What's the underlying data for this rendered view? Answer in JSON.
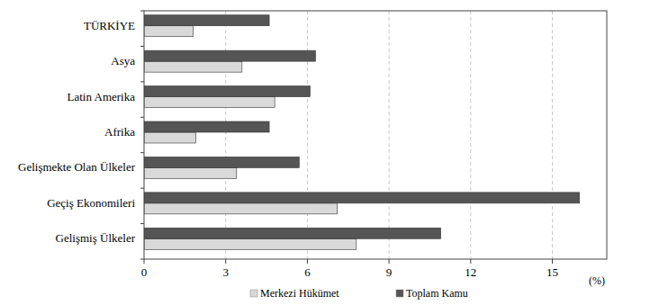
{
  "chart_data": {
    "type": "bar",
    "orientation": "horizontal",
    "categories": [
      "TÜRKİYE",
      "Asya",
      "Latin Amerika",
      "Afrika",
      "Gelişmekte Olan Ülkeler",
      "Geçiş Ekonomileri",
      "Gelişmiş Ülkeler"
    ],
    "series": [
      {
        "name": "Merkezi Hükümet",
        "color": "#d9d9d9",
        "values": [
          1.8,
          3.6,
          4.8,
          1.9,
          3.4,
          7.1,
          7.8
        ]
      },
      {
        "name": "Toplam Kamu",
        "color": "#555555",
        "values": [
          4.6,
          6.3,
          6.1,
          4.6,
          5.7,
          16.0,
          10.9
        ]
      }
    ],
    "xlabel": "(%)",
    "xlim": [
      0,
      17
    ],
    "xticks": [
      0,
      3,
      6,
      9,
      12,
      15
    ],
    "grid": true,
    "legend": "bottom"
  }
}
